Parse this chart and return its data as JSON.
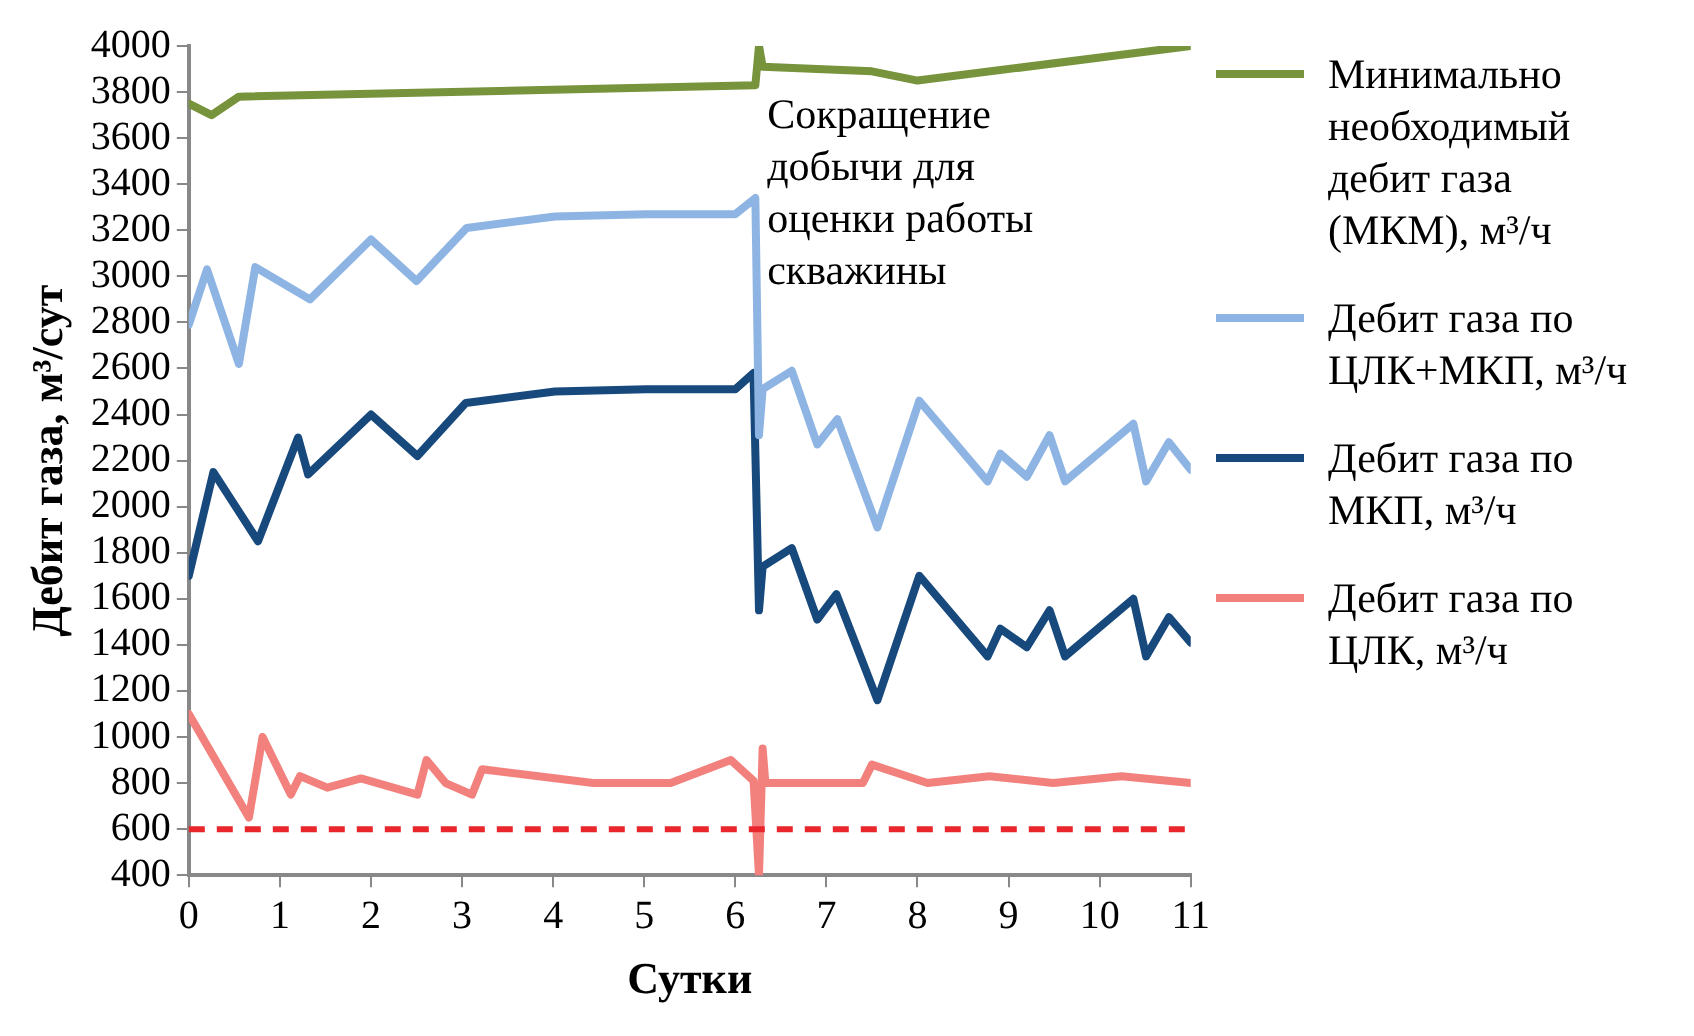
{
  "chart_data": {
    "type": "line",
    "xlabel": "Сутки",
    "ylabel": "Дебит газа, м³/сут",
    "xlim": [
      0,
      11
    ],
    "xticks": [
      0,
      1,
      2,
      3,
      4,
      5,
      6,
      7,
      8,
      9,
      10,
      11
    ],
    "ylim": [
      400,
      4000
    ],
    "yticks": [
      400,
      600,
      800,
      1000,
      1200,
      1400,
      1600,
      1800,
      2000,
      2200,
      2400,
      2600,
      2800,
      3000,
      3200,
      3400,
      3600,
      3800,
      4000
    ],
    "grid": false,
    "legend": "right",
    "marker": "none",
    "line_style": "solid",
    "annotations": [
      "Сокращение добычи для оценки работы скважины"
    ],
    "ref_lines": [
      {
        "axis": "y",
        "value": 600,
        "color": "#e8262b",
        "line_style": "dashed"
      }
    ],
    "series": [
      {
        "name": "Минимально необходимый дебит газа (МКМ), м³/ч",
        "color": "#77933c",
        "x": [
          0,
          0.25,
          0.55,
          6.22,
          6.26,
          6.3,
          7.5,
          8.0,
          11
        ],
        "values": [
          3750,
          3700,
          3780,
          3830,
          4000,
          3910,
          3890,
          3850,
          4000
        ]
      },
      {
        "name": "Дебит газа по ЦЛК+МКП, м³/ч",
        "color": "#8eb4e3",
        "x": [
          0,
          0.2,
          0.55,
          0.73,
          1.33,
          2.0,
          2.5,
          3.05,
          4.02,
          5.02,
          6.0,
          6.22,
          6.26,
          6.3,
          6.62,
          6.9,
          7.12,
          7.56,
          8.02,
          8.77,
          8.91,
          9.2,
          9.45,
          9.62,
          10.37,
          10.51,
          10.76,
          11
        ],
        "values": [
          2790,
          3030,
          2620,
          3040,
          2900,
          3160,
          2980,
          3210,
          3260,
          3270,
          3270,
          3340,
          2310,
          2510,
          2590,
          2270,
          2380,
          1910,
          2460,
          2110,
          2230,
          2130,
          2310,
          2110,
          2360,
          2110,
          2280,
          2160
        ]
      },
      {
        "name": "Дебит газа по МКП, м³/ч",
        "color": "#17497d",
        "x": [
          0,
          0.27,
          0.76,
          1.2,
          1.31,
          2.0,
          2.51,
          3.04,
          4.02,
          5.02,
          6.0,
          6.2,
          6.26,
          6.3,
          6.62,
          6.9,
          7.11,
          7.56,
          8.02,
          8.77,
          8.91,
          9.2,
          9.45,
          9.62,
          10.37,
          10.51,
          10.76,
          11
        ],
        "values": [
          1700,
          2150,
          1850,
          2300,
          2140,
          2400,
          2220,
          2450,
          2500,
          2510,
          2510,
          2580,
          1550,
          1740,
          1820,
          1510,
          1620,
          1160,
          1700,
          1350,
          1470,
          1390,
          1550,
          1350,
          1600,
          1350,
          1520,
          1410
        ]
      },
      {
        "name": "Дебит газа по ЦЛК, м³/ч",
        "color": "#f2807c",
        "x": [
          0,
          0.66,
          0.81,
          1.12,
          1.22,
          1.52,
          1.89,
          2.51,
          2.61,
          2.82,
          3.11,
          3.22,
          4.44,
          5.29,
          5.95,
          6.2,
          6.26,
          6.3,
          6.33,
          7.4,
          7.5,
          8.11,
          8.79,
          9.49,
          10.24,
          11
        ],
        "values": [
          1100,
          650,
          1000,
          750,
          830,
          780,
          820,
          750,
          900,
          800,
          750,
          860,
          800,
          800,
          900,
          810,
          400,
          950,
          800,
          800,
          880,
          800,
          830,
          800,
          830,
          800
        ]
      }
    ]
  }
}
